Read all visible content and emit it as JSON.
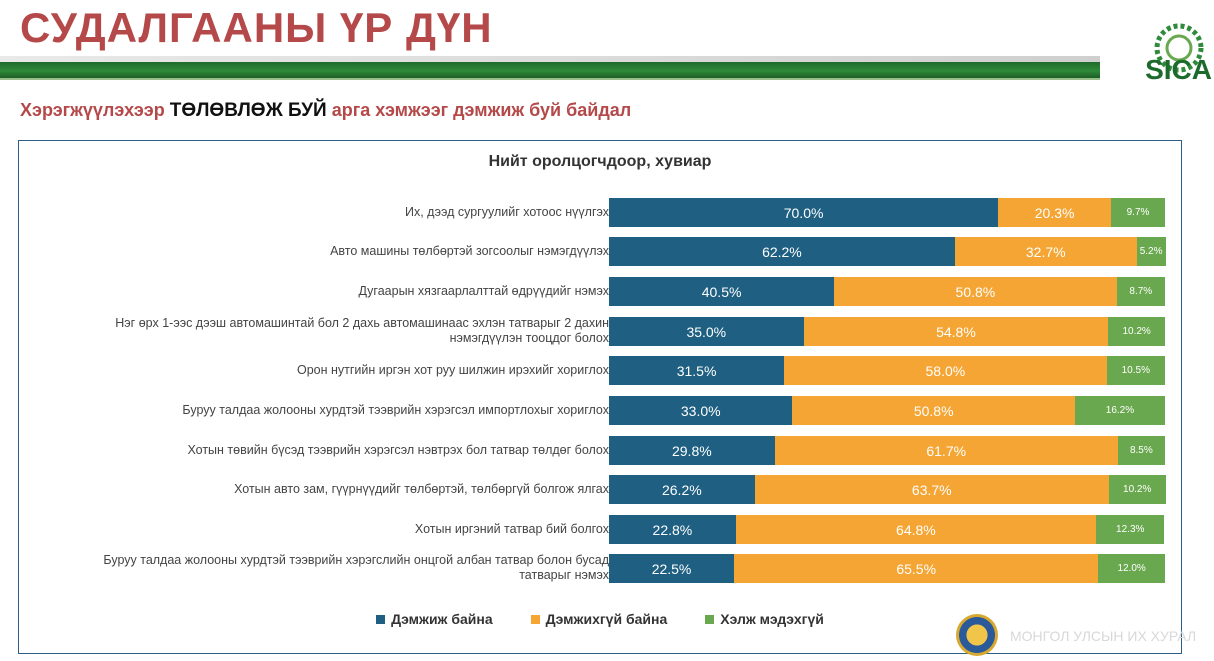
{
  "header": {
    "title": "СУДАЛГААНЫ ҮР ДҮН",
    "logo_text": "SICA",
    "subtitle_part1": "Хэрэгжүүлэхээр ",
    "subtitle_part2": "ТӨЛӨВЛӨЖ БУЙ",
    "subtitle_part3": " арга хэмжээг дэмжиж буй байдал"
  },
  "footer": {
    "parliament_text": "МОНГОЛ УЛСЫН ИХ ХУРАЛ"
  },
  "colors": {
    "support": "#1e5f82",
    "oppose": "#f4a533",
    "unknown": "#6aa84f"
  },
  "chart_data": {
    "type": "bar",
    "orientation": "horizontal",
    "stacked": true,
    "title": "Нийт оролцогчдоор, хувиар",
    "categories": [
      "Их, дээд сургуулийг хотоос нүүлгэх",
      "Авто машины төлбөртэй зогсоолыг нэмэгдүүлэх",
      "Дугаарын хязгаарлалттай өдрүүдийг нэмэх",
      "Нэг өрх 1-ээс дээш автомашинтай бол 2 дахь автомашинаас эхлэн татварыг 2 дахин нэмэгдүүлэн тооцдог болох",
      "Орон нутгийн иргэн хот руу шилжин ирэхийг хориглох",
      "Буруу талдаа жолооны хурдтэй тээврийн хэрэгсэл импортлохыг хориглох",
      "Хотын төвийн бүсэд тээврийн хэрэгсэл нэвтрэх бол татвар төлдөг болох",
      "Хотын авто зам, гүүрнүүдийг төлбөртэй, төлбөргүй болгож ялгах",
      "Хотын иргэний татвар бий болгох",
      "Буруу талдаа жолооны хурдтэй тээврийн хэрэгслийн онцгой албан татвар болон бусад татварыг нэмэх"
    ],
    "series": [
      {
        "name": "Дэмжиж байна",
        "values": [
          70.0,
          62.2,
          40.5,
          35.0,
          31.5,
          33.0,
          29.8,
          26.2,
          22.8,
          22.5
        ]
      },
      {
        "name": "Дэмжихгүй байна",
        "values": [
          20.3,
          32.7,
          50.8,
          54.8,
          58.0,
          50.8,
          61.7,
          63.7,
          64.8,
          65.5
        ]
      },
      {
        "name": "Хэлж мэдэхгүй",
        "values": [
          9.7,
          5.2,
          8.7,
          10.2,
          10.5,
          16.2,
          8.5,
          10.2,
          12.3,
          12.0
        ]
      }
    ],
    "labels": [
      [
        "70.0%",
        "20.3%",
        "9.7%"
      ],
      [
        "62.2%",
        "32.7%",
        "5.2%"
      ],
      [
        "40.5%",
        "50.8%",
        "8.7%"
      ],
      [
        "35.0%",
        "54.8%",
        "10.2%"
      ],
      [
        "31.5%",
        "58.0%",
        "10.5%"
      ],
      [
        "33.0%",
        "50.8%",
        "16.2%"
      ],
      [
        "29.8%",
        "61.7%",
        "8.5%"
      ],
      [
        "26.2%",
        "63.7%",
        "10.2%"
      ],
      [
        "22.8%",
        "64.8%",
        "12.3%"
      ],
      [
        "22.5%",
        "65.5%",
        "12.0%"
      ]
    ],
    "legend_position": "bottom"
  }
}
